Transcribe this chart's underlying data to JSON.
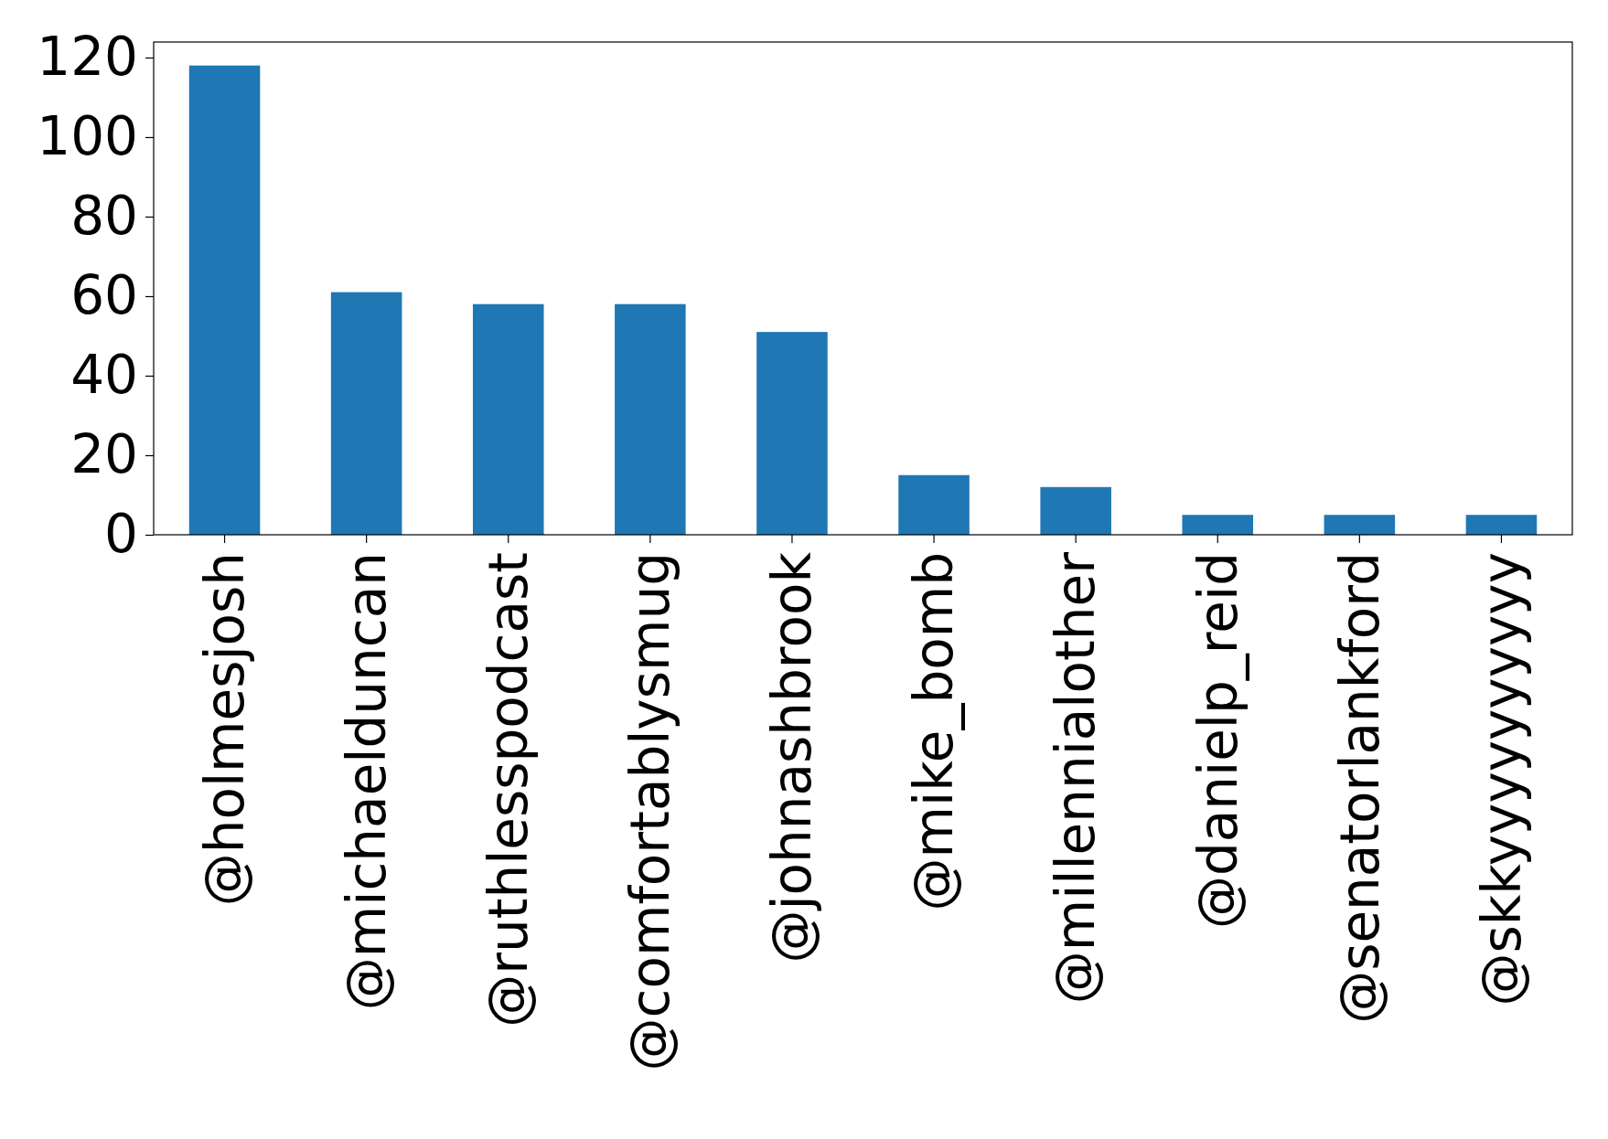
{
  "chart_data": {
    "type": "bar",
    "categories": [
      "@holmesjosh",
      "@michaelduncan",
      "@ruthlesspodcast",
      "@comfortablysmug",
      "@johnashbrook",
      "@mike_bomb",
      "@millennialother",
      "@danielp_reid",
      "@senatorlankford",
      "@skkyyyyyyyyyy"
    ],
    "values": [
      118,
      61,
      58,
      58,
      51,
      15,
      12,
      5,
      5,
      5
    ],
    "color": "#1f77b4",
    "ylim": [
      0,
      123.9
    ],
    "yticks": [
      0,
      20,
      40,
      60,
      80,
      100,
      120
    ],
    "grid": false
  }
}
